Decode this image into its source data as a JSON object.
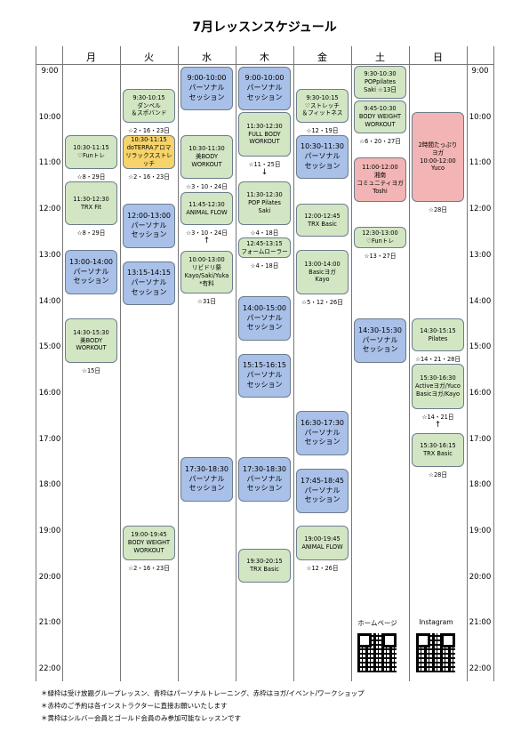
{
  "title": "7月レッスンスケジュール",
  "days": [
    "月",
    "火",
    "水",
    "木",
    "金",
    "土",
    "日"
  ],
  "times": [
    "9:00",
    "10:00",
    "11:00",
    "12:00",
    "13:00",
    "14:00",
    "15:00",
    "16:00",
    "17:00",
    "18:00",
    "19:00",
    "20:00",
    "21:00",
    "22:00"
  ],
  "columns": [
    {
      "events": [
        {
          "color": "#d3e6c3",
          "lines": [
            "10:30-11:15",
            "♡Funトレ"
          ],
          "note": "☆8・29日"
        },
        {
          "color": "#d3e6c3",
          "lines": [
            "11:30-12:30",
            "TRX Fit"
          ],
          "note": "☆8・29日"
        },
        {
          "color": "#a9c0e8",
          "lines": [
            "13:00-14:00",
            "パーソナル",
            "セッション"
          ]
        },
        {
          "color": "#d3e6c3",
          "lines": [
            "14:30-15:30",
            "美BODY",
            "WORKOUT"
          ],
          "note": "☆15日"
        }
      ]
    },
    {
      "events": [
        {
          "color": "#d3e6c3",
          "lines": [
            "9:30-10:15",
            "ダンベル",
            "＆スポバンド"
          ],
          "note": "☆2・16・23日"
        },
        {
          "color": "#f6d36b",
          "lines": [
            "10:30-11:15",
            "doTERRAアロマ",
            "リラックスストレッチ"
          ],
          "note": "☆2・16・23日"
        },
        {
          "color": "#a9c0e8",
          "lines": [
            "12:00-13:00",
            "パーソナル",
            "セッション"
          ]
        },
        {
          "color": "#a9c0e8",
          "lines": [
            "13:15-14:15",
            "パーソナル",
            "セッション"
          ]
        },
        {
          "color": "#d3e6c3",
          "lines": [
            "19:00-19:45",
            "BODY WEIGHT",
            "WORKOUT"
          ],
          "note": "☆2・16・23日"
        }
      ]
    },
    {
      "events": [
        {
          "color": "#a9c0e8",
          "lines": [
            "9:00-10:00",
            "パーソナル",
            "セッション"
          ]
        },
        {
          "color": "#d3e6c3",
          "lines": [
            "10:30-11:30",
            "美BODY",
            "WORKOUT"
          ],
          "note": "☆3・10・24日"
        },
        {
          "color": "#d3e6c3",
          "lines": [
            "11:45-12:30",
            "ANIMAL FLOW"
          ],
          "note": "☆3・10・24日",
          "arrow": "↑"
        },
        {
          "color": "#d3e6c3",
          "lines": [
            "10:00-13:00",
            "リビドリ祭",
            "Kayo/Saki/Yuka",
            "*有料"
          ],
          "note": "☆31日"
        },
        {
          "color": "#a9c0e8",
          "lines": [
            "17:30-18:30",
            "パーソナル",
            "セッション"
          ]
        }
      ]
    },
    {
      "events": [
        {
          "color": "#a9c0e8",
          "lines": [
            "9:00-10:00",
            "パーソナル",
            "セッション"
          ]
        },
        {
          "color": "#d3e6c3",
          "lines": [
            "11:30-12:30",
            "FULL BODY",
            "WORKOUT"
          ],
          "note": "☆11・25日",
          "arrow": "↓"
        },
        {
          "color": "#d3e6c3",
          "lines": [
            "11:30-12:30",
            "POP Pilates",
            "Saki"
          ],
          "note": "☆4・18日"
        },
        {
          "color": "#d3e6c3",
          "lines": [
            "12:45-13:15",
            "フォームローラー"
          ],
          "note": "☆4・18日"
        },
        {
          "color": "#a9c0e8",
          "lines": [
            "14:00-15:00",
            "パーソナル",
            "セッション"
          ]
        },
        {
          "color": "#a9c0e8",
          "lines": [
            "15:15-16:15",
            "パーソナル",
            "セッション"
          ]
        },
        {
          "color": "#a9c0e8",
          "lines": [
            "17:30-18:30",
            "パーソナル",
            "セッション"
          ]
        },
        {
          "color": "#d3e6c3",
          "lines": [
            "19:30-20:15",
            "TRX Basic"
          ]
        }
      ]
    },
    {
      "events": [
        {
          "color": "#d3e6c3",
          "lines": [
            "9:30-10:15",
            "♡ストレッチ",
            "＆フィットネス"
          ],
          "note": "☆12・19日"
        },
        {
          "color": "#a9c0e8",
          "lines": [
            "10:30-11:30",
            "パーソナル",
            "セッション"
          ]
        },
        {
          "color": "#d3e6c3",
          "lines": [
            "12:00-12:45",
            "TRX Basic"
          ]
        },
        {
          "color": "#d3e6c3",
          "lines": [
            "13:00-14:00",
            "Basicヨガ",
            "Kayo"
          ],
          "note": "☆5・12・26日"
        },
        {
          "color": "#a9c0e8",
          "lines": [
            "16:30-17:30",
            "パーソナル",
            "セッション"
          ]
        },
        {
          "color": "#a9c0e8",
          "lines": [
            "17:45-18:45",
            "パーソナル",
            "セッション"
          ]
        },
        {
          "color": "#d3e6c3",
          "lines": [
            "19:00-19:45",
            "ANIMAL FLOW"
          ],
          "note": "☆12・26日"
        }
      ]
    },
    {
      "events": [
        {
          "color": "#d3e6c3",
          "lines": [
            "9:30-10:30",
            "POPpilates",
            "Saki ☆13日"
          ]
        },
        {
          "color": "#d3e6c3",
          "lines": [
            "9:45-10:30",
            "BODY WEIGHT",
            "WORKOUT"
          ],
          "note": "☆6・20・27日"
        },
        {
          "color": "#f2b4b4",
          "lines": [
            "11:00-12:00",
            "湘南",
            "コミュニティヨガ",
            "Toshi"
          ]
        },
        {
          "color": "#d3e6c3",
          "lines": [
            "12:30-13:00",
            "♡Funトレ"
          ],
          "note": "☆13・27日"
        },
        {
          "color": "#a9c0e8",
          "lines": [
            "14:30-15:30",
            "パーソナル",
            "セッション"
          ]
        }
      ]
    },
    {
      "events": [
        {
          "color": "#f2b4b4",
          "lines": [
            "2時間たっぷり",
            "ヨガ",
            "10:00-12:00",
            "Yuco"
          ],
          "note": "☆28日"
        },
        {
          "color": "#d3e6c3",
          "lines": [
            "14:30-15:15",
            "Pilates"
          ],
          "note": "☆14・21・28日"
        },
        {
          "color": "#d3e6c3",
          "lines": [
            "15:30-16:30",
            "Activeヨガ/Yuco",
            "Basicヨガ/Kayo"
          ],
          "note": "☆14・21日",
          "arrow": "↑"
        },
        {
          "color": "#d3e6c3",
          "lines": [
            "15:30-16:15",
            "TRX Basic"
          ],
          "note": "☆28日"
        }
      ]
    }
  ],
  "links": [
    "ホームページ",
    "Instagram"
  ],
  "footnotes": [
    "＊緑枠は受け放題グループレッスン、青枠はパーソナルトレーニング、赤枠はヨガ/イベント/ワークショップ",
    "＊赤枠のご予約は各インストラクターに直接お願いいたします",
    "＊黄枠はシルバー会員とゴールド会員のみ参加可能なレッスンです"
  ]
}
